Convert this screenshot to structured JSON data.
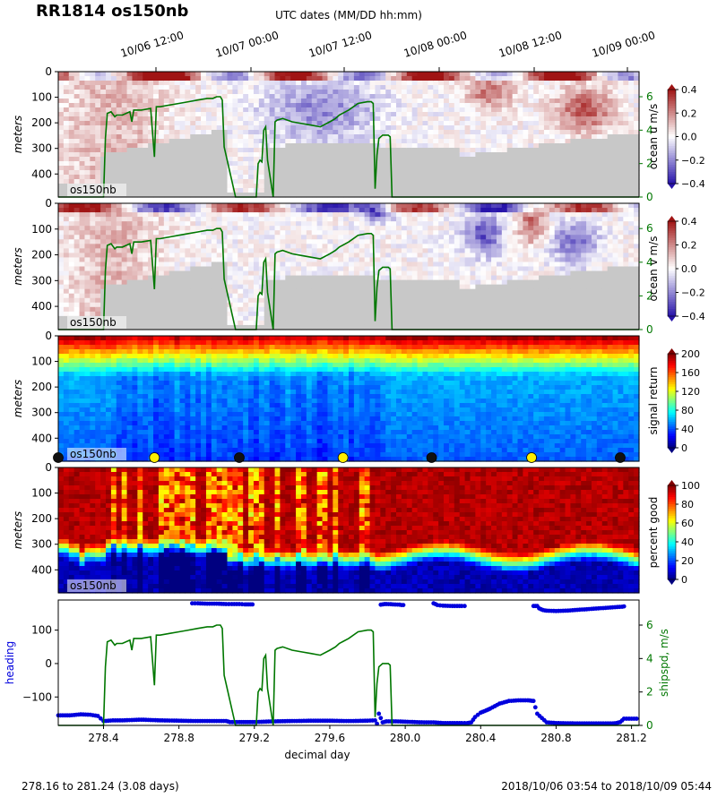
{
  "title": "RR1814 os150nb",
  "top_axis": {
    "label": "UTC dates (MM/DD hh:mm)",
    "ticks": [
      "10/06 12:00",
      "10/07 00:00",
      "10/07 12:00",
      "10/08 00:00",
      "10/08 12:00",
      "10/09 00:00"
    ]
  },
  "footer": {
    "left": "278.16 to 281.24 (3.08 days)",
    "right": "2018/10/06 03:54 to 2018/10/09 05:44"
  },
  "colors": {
    "shipspd": "#007700",
    "heading": "#0000dd",
    "no_data": "#c8c8c8"
  },
  "chart_data": [
    {
      "type": "heatmap",
      "title": "",
      "xlabel": "",
      "ylabel": "meters",
      "yticks": [
        "0",
        "100",
        "200",
        "300",
        "400"
      ],
      "ylim": [
        490,
        0
      ],
      "xlim": [
        278.16,
        281.24
      ],
      "inset_label": "os150nb",
      "colorbar": {
        "label": "ocean u m/s",
        "range": [
          -0.4,
          0.4
        ],
        "ticks": [
          "0.4",
          "0.2",
          "0.0",
          "−0.2",
          "−0.4"
        ],
        "colormap": "blue-white-red"
      },
      "overlay_axis": {
        "ticks": [
          "6",
          "4",
          "2",
          "0"
        ],
        "range": [
          0,
          7.5
        ]
      }
    },
    {
      "type": "heatmap",
      "title": "",
      "xlabel": "",
      "ylabel": "meters",
      "yticks": [
        "0",
        "100",
        "200",
        "300",
        "400"
      ],
      "ylim": [
        490,
        0
      ],
      "xlim": [
        278.16,
        281.24
      ],
      "inset_label": "os150nb",
      "colorbar": {
        "label": "ocean v m/s",
        "range": [
          -0.4,
          0.4
        ],
        "ticks": [
          "0.4",
          "0.2",
          "0.0",
          "−0.2",
          "−0.4"
        ],
        "colormap": "blue-white-red"
      },
      "overlay_axis": {
        "ticks": [
          "6",
          "4",
          "2",
          "0"
        ],
        "range": [
          0,
          7.5
        ]
      }
    },
    {
      "type": "heatmap",
      "title": "",
      "xlabel": "",
      "ylabel": "meters",
      "yticks": [
        "0",
        "100",
        "200",
        "300",
        "400"
      ],
      "ylim": [
        490,
        0
      ],
      "xlim": [
        278.16,
        281.24
      ],
      "inset_label": "os150nb",
      "colorbar": {
        "label": "signal return",
        "range": [
          0,
          200
        ],
        "ticks": [
          "200",
          "160",
          "120",
          "80",
          "40",
          "0"
        ],
        "colormap": "jet"
      },
      "markers": [
        {
          "x": 278.16,
          "color": "black"
        },
        {
          "x": 278.67,
          "color": "yellow"
        },
        {
          "x": 279.12,
          "color": "black"
        },
        {
          "x": 279.67,
          "color": "yellow"
        },
        {
          "x": 280.14,
          "color": "black"
        },
        {
          "x": 280.67,
          "color": "yellow"
        },
        {
          "x": 281.14,
          "color": "black"
        }
      ]
    },
    {
      "type": "heatmap",
      "title": "",
      "xlabel": "",
      "ylabel": "meters",
      "yticks": [
        "0",
        "100",
        "200",
        "300",
        "400"
      ],
      "ylim": [
        490,
        0
      ],
      "xlim": [
        278.16,
        281.24
      ],
      "inset_label": "os150nb",
      "colorbar": {
        "label": "percent good",
        "range": [
          0,
          100
        ],
        "ticks": [
          "100",
          "80",
          "60",
          "40",
          "20",
          "0"
        ],
        "colormap": "jet"
      }
    },
    {
      "type": "scatter",
      "title": "",
      "xlabel": "decimal day",
      "ylabel": "heading",
      "y2label": "shipspd, m/s",
      "xticks": [
        "278.4",
        "278.8",
        "279.2",
        "279.6",
        "280.0",
        "280.4",
        "280.8",
        "281.2"
      ],
      "xlim": [
        278.16,
        281.24
      ],
      "yticks": [
        "100",
        "0",
        "−100"
      ],
      "ylim": [
        -185,
        190
      ],
      "y2ticks": [
        "6",
        "4",
        "2",
        "0"
      ],
      "y2lim": [
        0,
        7.5
      ],
      "series": [
        {
          "axis": "y",
          "x": [
            278.16,
            278.22,
            278.28,
            278.33,
            278.37,
            278.4,
            278.45,
            278.5,
            278.6,
            278.7,
            278.8,
            278.9,
            279.0,
            279.05,
            279.07,
            279.12,
            279.2,
            279.3,
            279.4,
            279.5,
            279.6,
            279.7,
            279.8,
            279.84,
            279.85,
            279.86,
            279.88,
            279.9,
            279.95,
            280.0,
            280.05,
            280.1,
            280.15,
            280.2,
            280.3,
            280.33,
            280.35,
            280.37,
            280.4,
            280.43,
            280.45,
            280.5,
            280.55,
            280.6,
            280.65,
            280.68,
            280.7,
            280.75,
            280.8,
            280.9,
            281.0,
            281.1,
            281.12,
            281.14,
            281.16,
            281.2,
            281.24
          ],
          "y": [
            -155,
            -155,
            -152,
            -153,
            -157,
            -172,
            -170,
            -170,
            -168,
            -170,
            -171,
            -172,
            -172,
            -172,
            -175,
            -175,
            -175,
            -173,
            -172,
            -171,
            -171,
            -172,
            -171,
            -170,
            -180,
            -150,
            -176,
            -173,
            -173,
            -174,
            -175,
            -176,
            -176,
            -178,
            -178,
            -178,
            -176,
            -160,
            -147,
            -140,
            -135,
            -120,
            -112,
            -110,
            -110,
            -112,
            -150,
            -176,
            -178,
            -179,
            -179,
            -179,
            -178,
            -175,
            -165,
            -165,
            -165
          ]
        },
        {
          "axis": "y",
          "x": [
            278.87,
            278.9,
            278.95,
            279.0,
            279.05,
            279.08,
            279.12,
            279.15,
            279.18,
            279.2
          ],
          "y": [
            180,
            180,
            179,
            179,
            178,
            178,
            178,
            177,
            177,
            177
          ]
        },
        {
          "axis": "y",
          "x": [
            279.87,
            279.88,
            279.89,
            279.9,
            279.97,
            279.98,
            280.0
          ],
          "y": [
            176,
            177,
            178,
            178,
            176,
            175,
            175
          ]
        },
        {
          "axis": "y",
          "x": [
            280.15,
            280.16,
            280.17,
            280.2,
            280.25,
            280.3,
            280.33
          ],
          "y": [
            180,
            178,
            175,
            173,
            172,
            172,
            172
          ]
        },
        {
          "axis": "y",
          "x": [
            280.68,
            280.7,
            280.71,
            280.73,
            280.75,
            280.8,
            280.85,
            280.9,
            280.95,
            281.0,
            281.05,
            281.1,
            281.15,
            281.17
          ],
          "y": [
            172,
            172,
            165,
            160,
            158,
            157,
            158,
            160,
            162,
            164,
            166,
            168,
            170,
            172
          ]
        },
        {
          "axis": "y2",
          "x": [
            278.16,
            278.4,
            278.41,
            278.42,
            278.44,
            278.46,
            278.47,
            278.5,
            278.54,
            278.55,
            278.56,
            278.6,
            278.65,
            278.67,
            278.68,
            278.7,
            278.75,
            278.8,
            278.85,
            278.9,
            278.95,
            278.98,
            279.0,
            279.02,
            279.03,
            279.04,
            279.1,
            279.2,
            279.21,
            279.22,
            279.23,
            279.24,
            279.25,
            279.26,
            279.27,
            279.3,
            279.31,
            279.32,
            279.35,
            279.4,
            279.45,
            279.5,
            279.55,
            279.6,
            279.63,
            279.65,
            279.7,
            279.75,
            279.8,
            279.82,
            279.83,
            279.84,
            279.85,
            279.86,
            279.88,
            279.9,
            279.91,
            279.92,
            279.93,
            279.95,
            280.0,
            280.1,
            280.2,
            280.3,
            280.4,
            280.5,
            280.6,
            280.7,
            280.8,
            280.9,
            281.0,
            281.1,
            281.2,
            281.24
          ],
          "y": [
            0,
            0,
            3.5,
            5.0,
            5.1,
            4.8,
            4.9,
            4.9,
            5.1,
            4.5,
            5.2,
            5.2,
            5.3,
            2.4,
            5.4,
            5.4,
            5.5,
            5.6,
            5.7,
            5.8,
            5.9,
            5.9,
            6.0,
            6.0,
            5.8,
            3.0,
            0,
            0,
            0,
            2.0,
            2.2,
            2.1,
            4.0,
            4.2,
            2.2,
            0,
            4.5,
            4.6,
            4.7,
            4.5,
            4.4,
            4.3,
            4.2,
            4.5,
            4.7,
            4.9,
            5.2,
            5.6,
            5.7,
            5.7,
            5.6,
            0.5,
            2.5,
            3.5,
            3.7,
            3.7,
            3.7,
            3.6,
            0,
            0,
            0,
            0,
            0,
            0,
            0,
            0,
            0,
            0,
            0,
            0,
            0,
            0,
            0,
            0
          ]
        }
      ]
    }
  ]
}
